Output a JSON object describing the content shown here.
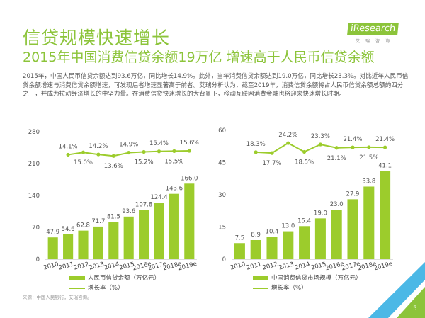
{
  "header": {
    "title": "信贷规模快速增长",
    "subtitle": "2015年中国消费信贷余额19万亿 增速高于人民币信贷余额",
    "logo_text": "iResearch",
    "logo_cn": "艾瑞咨询",
    "paragraph": "2015年，中国人民币信贷余额达到93.6万亿，同比增长14.9%。此外，当年消费信贷余额达到19.0万亿，同比增长23.3%。对比近年人民币信贷余额增速与消费信贷余额增速，可发现后者增速显著高于前者。艾瑞分析认为，截至2019年，消费信贷余额将占人民币信贷余额总额的四分之一，并成为拉动经济增长的中坚力量。在消费信贷快速增长的大背景下，移动互联网消费金融也将迎来快速增长时期。"
  },
  "colors": {
    "accent": "#8cc43a",
    "bar": "#9ccc2c",
    "line": "#9ccc2c"
  },
  "chart_data": [
    {
      "type": "bar",
      "categories": [
        "2010",
        "2011",
        "2012",
        "2013",
        "2014",
        "2015",
        "2016e",
        "2017e",
        "2018e",
        "2019e"
      ],
      "series": [
        {
          "name": "人民币信贷余额（万亿元）",
          "type": "bar",
          "values": [
            47.9,
            54.6,
            62.8,
            71.7,
            81.5,
            93.6,
            107.8,
            124.4,
            143.6,
            166.0
          ],
          "labels": [
            "47.9",
            "54.6",
            "62.8",
            "71.7",
            "81.5",
            "93.6",
            "107.8",
            "124.4",
            "143.6",
            "166.0"
          ]
        },
        {
          "name": "增长率（%）",
          "type": "line",
          "values": [
            null,
            14.1,
            15.0,
            14.2,
            13.6,
            14.9,
            15.2,
            15.4,
            15.5,
            15.6
          ],
          "labels": [
            "",
            "14.1%",
            "15.0%",
            "14.2%",
            "13.6%",
            "14.9%",
            "15.2%",
            "15.4%",
            "15.5%",
            "15.6%"
          ]
        }
      ],
      "yticks": [
        "0",
        "70",
        "140",
        "210",
        "280"
      ],
      "ylim": [
        0,
        280
      ]
    },
    {
      "type": "bar",
      "categories": [
        "2010",
        "2011",
        "2012",
        "2013",
        "2014",
        "2015",
        "2016e",
        "2017e",
        "2018e",
        "2019e"
      ],
      "series": [
        {
          "name": "中国消费信贷市场规模（万亿元）",
          "type": "bar",
          "values": [
            7.5,
            8.9,
            10.4,
            13.0,
            15.4,
            19.0,
            23.0,
            27.9,
            33.8,
            41.1
          ],
          "labels": [
            "7.5",
            "8.9",
            "10.4",
            "13.0",
            "15.4",
            "19.0",
            "23.0",
            "27.9",
            "33.8",
            "41.1"
          ]
        },
        {
          "name": "增长率（%）",
          "type": "line",
          "values": [
            null,
            18.3,
            17.7,
            24.2,
            18.5,
            23.3,
            21.1,
            21.4,
            21.5,
            21.4
          ],
          "labels": [
            "",
            "18.3%",
            "17.7%",
            "24.2%",
            "18.5%",
            "23.3%",
            "21.1%",
            "21.4%",
            "21.5%",
            "21.4%"
          ]
        }
      ],
      "yticks": [
        "0",
        "15",
        "30",
        "45",
        "60"
      ],
      "ylim": [
        0,
        60
      ]
    }
  ],
  "footer": {
    "source": "来源：中国人民银行，艾瑞咨询。",
    "page": "5"
  }
}
